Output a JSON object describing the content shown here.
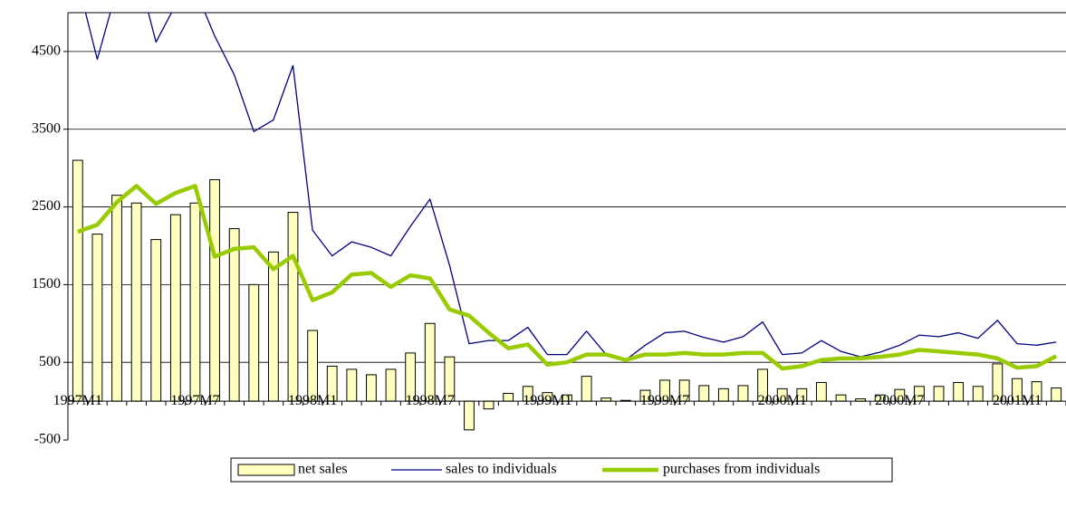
{
  "chart_data": {
    "type": "bar",
    "categories": [
      "1997M1",
      null,
      null,
      null,
      null,
      null,
      "1997M7",
      null,
      null,
      null,
      null,
      null,
      "1998M1",
      null,
      null,
      null,
      null,
      null,
      "1998M7",
      null,
      null,
      null,
      null,
      null,
      "1999M1",
      null,
      null,
      null,
      null,
      null,
      "1999M7",
      null,
      null,
      null,
      null,
      null,
      "2000M1",
      null,
      null,
      null,
      null,
      null,
      "2000M7",
      null,
      null,
      null,
      null,
      null,
      "2001M1",
      null,
      null
    ],
    "ylim": [
      -500,
      5000
    ],
    "yticks": [
      -500,
      500,
      1500,
      2500,
      3500,
      4500
    ],
    "grid": true,
    "series": [
      {
        "name": "net sales",
        "type": "bar",
        "color": "#ffffc0",
        "values": [
          3100,
          2150,
          2650,
          2550,
          2080,
          2400,
          2550,
          2850,
          2220,
          1500,
          1920,
          2430,
          910,
          450,
          410,
          340,
          410,
          620,
          1000,
          570,
          -370,
          -100,
          100,
          190,
          110,
          80,
          320,
          40,
          10,
          140,
          270,
          270,
          200,
          160,
          200,
          410,
          160,
          160,
          240,
          80,
          30,
          80,
          150,
          190,
          190,
          240,
          190,
          480,
          290,
          250,
          170
        ]
      },
      {
        "name": "sales to individuals",
        "type": "line",
        "color": "#000080",
        "values": [
          5400,
          4400,
          5300,
          5600,
          4620,
          5100,
          5300,
          4700,
          4200,
          3470,
          3620,
          4320,
          2200,
          1870,
          2050,
          1980,
          1870,
          2250,
          2600,
          1750,
          740,
          780,
          780,
          950,
          600,
          600,
          900,
          600,
          530,
          720,
          880,
          900,
          820,
          760,
          830,
          1020,
          600,
          620,
          780,
          640,
          570,
          630,
          720,
          850,
          830,
          880,
          810,
          1040,
          740,
          720,
          760
        ]
      },
      {
        "name": "purchases from individuals",
        "type": "line",
        "color": "#99cc00",
        "values": [
          2180,
          2270,
          2560,
          2770,
          2540,
          2680,
          2770,
          1860,
          1960,
          1980,
          1700,
          1870,
          1300,
          1400,
          1630,
          1650,
          1470,
          1620,
          1580,
          1180,
          1100,
          880,
          680,
          730,
          470,
          500,
          600,
          600,
          530,
          600,
          600,
          620,
          600,
          600,
          620,
          620,
          420,
          450,
          530,
          550,
          550,
          570,
          600,
          660,
          640,
          620,
          600,
          550,
          430,
          450,
          580
        ]
      }
    ]
  }
}
